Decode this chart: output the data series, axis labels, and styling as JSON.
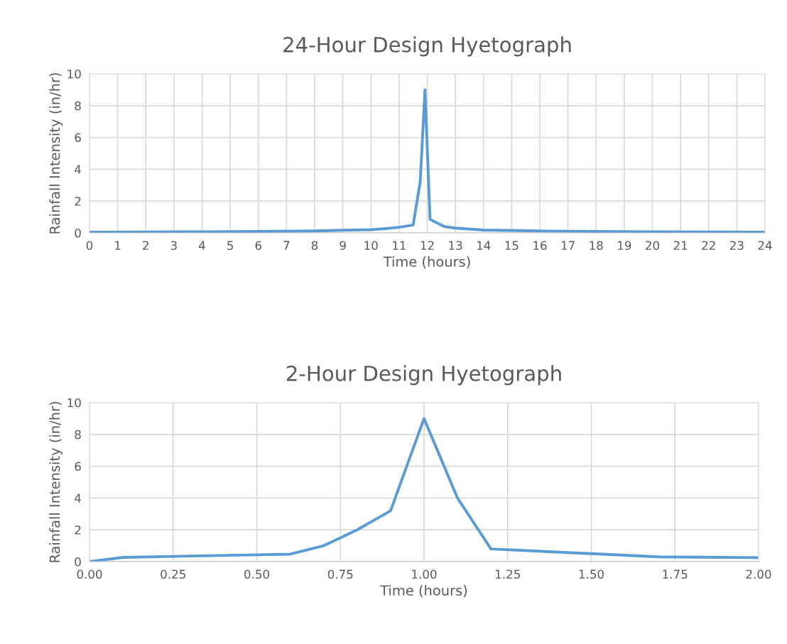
{
  "chart_data": [
    {
      "type": "line",
      "title": "24-Hour Design Hyetograph",
      "xlabel": "Time (hours)",
      "ylabel": "Rainfall Intensity (in/hr)",
      "series": [
        {
          "color": "#5b9bd5",
          "x": [
            0,
            2,
            4,
            6,
            8,
            9,
            10,
            10.5,
            11,
            11.5,
            11.75,
            11.92,
            12.1,
            12.6,
            13,
            14,
            16,
            18,
            20,
            22,
            24
          ],
          "values": [
            0.05,
            0.06,
            0.07,
            0.09,
            0.12,
            0.17,
            0.2,
            0.27,
            0.35,
            0.5,
            3.2,
            9,
            0.85,
            0.4,
            0.3,
            0.18,
            0.12,
            0.09,
            0.07,
            0.06,
            0.05
          ]
        }
      ],
      "xlim": [
        0,
        24
      ],
      "xticks": [
        0,
        1,
        2,
        3,
        4,
        5,
        6,
        7,
        8,
        9,
        10,
        11,
        12,
        13,
        14,
        15,
        16,
        17,
        18,
        19,
        20,
        21,
        22,
        23,
        24
      ],
      "ylim": [
        0,
        10
      ],
      "yticks": [
        0,
        2,
        4,
        6,
        8,
        10
      ],
      "grid": true,
      "legend": false,
      "marker": "none",
      "line_style": "solid"
    },
    {
      "type": "line",
      "title": "2-Hour Design Hyetograph",
      "xlabel": "Time (hours)",
      "ylabel": "Rainfall Intensity (in/hr)",
      "series": [
        {
          "color": "#5b9bd5",
          "x": [
            0,
            0.1,
            0.25,
            0.5,
            0.6,
            0.7,
            0.8,
            0.9,
            1.0,
            1.1,
            1.2,
            1.5,
            1.7,
            2.0
          ],
          "values": [
            0,
            0.27,
            0.33,
            0.43,
            0.47,
            1.0,
            2.0,
            3.2,
            9.0,
            4.0,
            0.8,
            0.5,
            0.3,
            0.25
          ]
        }
      ],
      "xlim": [
        0,
        2
      ],
      "xticks": [
        {
          "value": 0,
          "label": "0.00"
        },
        {
          "value": 0.25,
          "label": "0.25"
        },
        {
          "value": 0.5,
          "label": "0.50"
        },
        {
          "value": 0.75,
          "label": "0.75"
        },
        {
          "value": 1,
          "label": "1.00"
        },
        {
          "value": 1.25,
          "label": "1.25"
        },
        {
          "value": 1.5,
          "label": "1.50"
        },
        {
          "value": 1.75,
          "label": "1.75"
        },
        {
          "value": 2,
          "label": "2.00"
        }
      ],
      "ylim": [
        0,
        10
      ],
      "yticks": [
        0,
        2,
        4,
        6,
        8,
        10
      ],
      "grid": true,
      "legend": false,
      "marker": "none",
      "line_style": "solid"
    }
  ]
}
